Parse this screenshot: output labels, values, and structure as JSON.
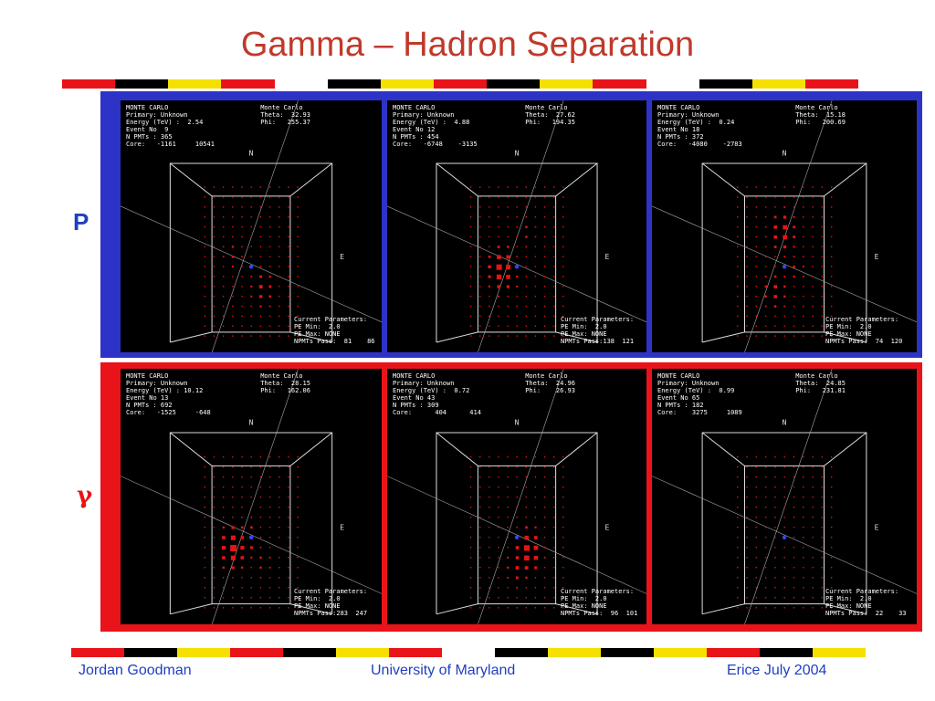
{
  "slide": {
    "title": "Gamma – Hadron Separation",
    "row_labels": {
      "proton": "P",
      "gamma": "γ"
    },
    "footer": {
      "author": "Jordan Goodman",
      "institution": "University of Maryland",
      "event": "Erice July 2004"
    },
    "colors": {
      "title": "#c0392b",
      "proton_frame": "#2e33c8",
      "gamma_frame": "#e8141a",
      "footer": "#1f3fbf"
    }
  },
  "panels": [
    {
      "header": "MONTE CARLO\nPrimary: Unknown\nEnergy (TeV) :  2.54\nEvent No  9\nN PMTs : 365\nCore:   -1161     10541",
      "mc": "Monte Carlo\nTheta:  32.93\nPhi:   255.37",
      "params": "Current Parameters:\nPE Min:  2.0\nPE Max: NONE\nNPMTs Pass:  81    86"
    },
    {
      "header": "MONTE CARLO\nPrimary: Unknown\nEnergy (TeV) :  4.88\nEvent No 12\nN PMTs : 454\nCore:   -6748    -3135",
      "mc": "Monte Carlo\nTheta:  27.62\nPhi:   194.35",
      "params": "Current Parameters:\nPE Min:  2.0\nPE Max: NONE\nNPMTs Pass:138  121"
    },
    {
      "header": "MONTE CARLO\nPrimary: Unknown\nEnergy (TeV) :  0.24\nEvent No 18\nN PMTs : 372\nCore:   -4080    -2783",
      "mc": "Monte Carlo\nTheta:  15.18\nPhi:   200.69",
      "params": "Current Parameters:\nPE Min:  2.0\nPE Max: NONE\nNPMTs Pass:  74  120"
    },
    {
      "header": "MONTE CARLO\nPrimary: Unknown\nEnergy (TeV) : 10.12\nEvent No 13\nN PMTs : 692\nCore:   -1525     -648",
      "mc": "Monte Carlo\nTheta:  28.15\nPhi:   162.06",
      "params": "Current Parameters:\nPE Min:  2.0\nPE Max: NONE\nNPMTs Pass:283  247"
    },
    {
      "header": "MONTE CARLO\nPrimary: Unknown\nEnergy (TeV) :  0.72\nEvent No 43\nN PMTs : 309\nCore:      404      414",
      "mc": "Monte Carlo\nTheta:  24.96\nPhi:    26.93",
      "params": "Current Parameters:\nPE Min:  2.0\nPE Max: NONE\nNPMTs Pass:  96  101"
    },
    {
      "header": "MONTE CARLO\nPrimary: Unknown\nEnergy (TeV) :  0.99\nEvent No 65\nN PMTs : 182\nCore:    3275     1089",
      "mc": "Monte Carlo\nTheta:  24.85\nPhi:   231.81",
      "params": "Current Parameters:\nPE Min:  2.0\nPE Max: NONE\nNPMTs Pass:  22    33"
    }
  ],
  "display": {
    "north_label": "N",
    "east_label": "E"
  }
}
